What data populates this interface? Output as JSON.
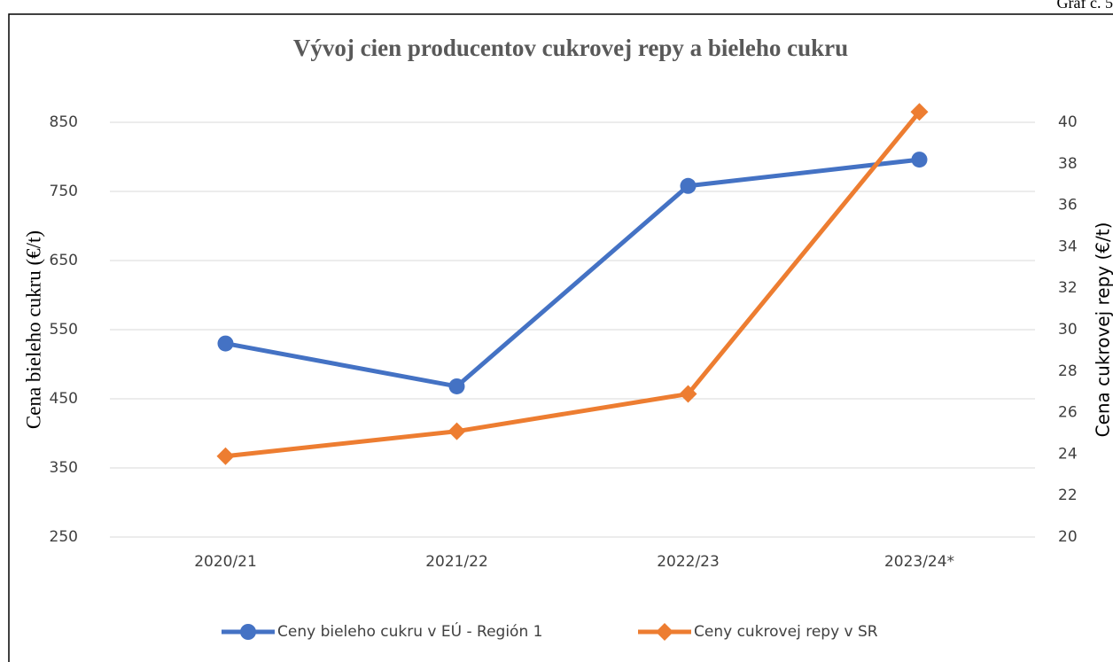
{
  "caption": "Graf č. 5",
  "chart_data": {
    "type": "line",
    "title": "Vývoj cien producentov cukrovej repy a bieleho cukru",
    "y_label": "Cena bieleho cukru (€/t)",
    "y2_label": "Cena cukrovej repy (€/t)",
    "categories": [
      "2020/21",
      "2021/22",
      "2022/23",
      "2023/24*"
    ],
    "series": [
      {
        "name": "Ceny bieleho cukru v EÚ - Región 1",
        "color": "#4472c4",
        "marker": "circle",
        "values": [
          530,
          468,
          758,
          796
        ]
      },
      {
        "name": "Ceny cukrovej repy v SR",
        "color": "#ed7d31",
        "marker": "diamond",
        "axis": "y2",
        "values": [
          23.9,
          25.1,
          26.9,
          40.5
        ]
      }
    ],
    "ylim": [
      250,
      850
    ],
    "yticks": [
      250,
      350,
      450,
      550,
      650,
      750,
      850
    ],
    "y2lim": [
      20,
      40
    ],
    "y2ticks": [
      20,
      22,
      24,
      26,
      28,
      30,
      32,
      34,
      36,
      38,
      40
    ],
    "grid": true,
    "legend": "bottom"
  }
}
